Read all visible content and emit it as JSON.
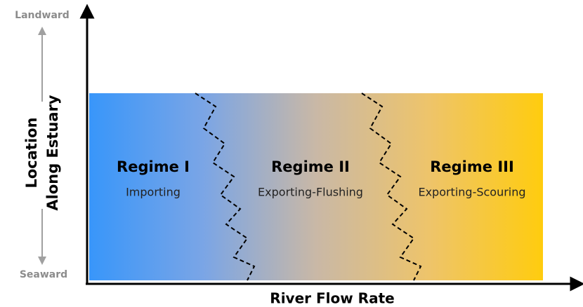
{
  "axes": {
    "y_label_lines": [
      "Location",
      "Along Estuary"
    ],
    "x_label": "River Flow Rate",
    "top_label": "Landward",
    "bottom_label": "Seaward"
  },
  "regimes": [
    {
      "name": "Regime I",
      "description": "Importing"
    },
    {
      "name": "Regime II",
      "description": "Exporting-Flushing"
    },
    {
      "name": "Regime III",
      "description": "Exporting-Scouring"
    }
  ]
}
